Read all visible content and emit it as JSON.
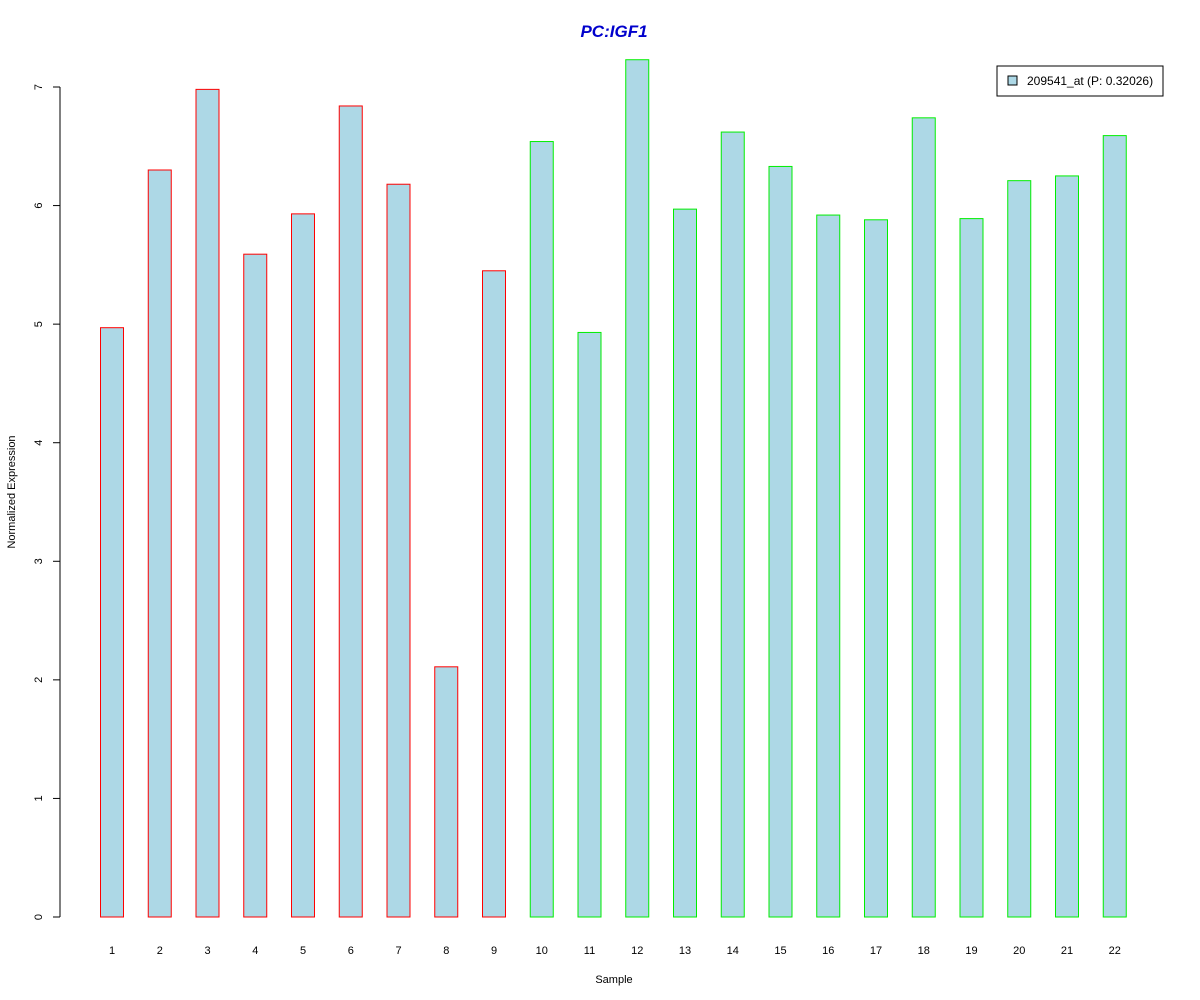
{
  "chart_data": {
    "type": "bar",
    "title": "PC:IGF1",
    "xlabel": "Sample",
    "ylabel": "Normalized Expression",
    "categories": [
      "1",
      "2",
      "3",
      "4",
      "5",
      "6",
      "7",
      "8",
      "9",
      "10",
      "11",
      "12",
      "13",
      "14",
      "15",
      "16",
      "17",
      "18",
      "19",
      "20",
      "21",
      "22"
    ],
    "series": [
      {
        "name": "209541_at (P: 0.32026)",
        "values": [
          4.97,
          6.3,
          6.98,
          5.59,
          5.93,
          6.84,
          6.18,
          2.11,
          5.45,
          6.54,
          4.93,
          7.23,
          5.97,
          6.62,
          6.33,
          5.92,
          5.88,
          6.74,
          5.89,
          6.21,
          6.25,
          6.59
        ]
      }
    ],
    "groups": [
      1,
      1,
      1,
      1,
      1,
      1,
      1,
      1,
      1,
      2,
      2,
      2,
      2,
      2,
      2,
      2,
      2,
      2,
      2,
      2,
      2,
      2
    ],
    "yticks": [
      0,
      1,
      2,
      3,
      4,
      5,
      6,
      7
    ],
    "ylim": [
      0,
      7.24
    ],
    "legend_position": "top-right",
    "grid": false,
    "colors": {
      "title": "#0000cc",
      "bar_fill": "#add8e6",
      "group1_border": "#ff0000",
      "group2_border": "#00ee00",
      "axis": "#000000"
    }
  }
}
